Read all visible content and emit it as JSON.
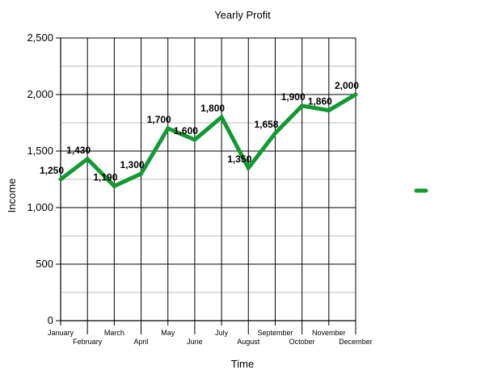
{
  "chart_data": {
    "type": "line",
    "title": "Yearly Profit",
    "xlabel": "Time",
    "ylabel": "Income",
    "categories": [
      "January",
      "February",
      "March",
      "April",
      "May",
      "June",
      "July",
      "August",
      "September",
      "October",
      "November",
      "December"
    ],
    "series": [
      {
        "values": [
          1250,
          1430,
          1190,
          1300,
          1700,
          1600,
          1800,
          1350,
          1658,
          1900,
          1860,
          2000
        ],
        "data_labels": [
          "1,250",
          "1,430",
          "1,190",
          "1,300",
          "1,700",
          "1,600",
          "1,800",
          "1,350",
          "1,658",
          "1,900",
          "1,860",
          "2,000"
        ],
        "color": "#119933"
      }
    ],
    "ylim": [
      0,
      2500
    ],
    "yticks": [
      0,
      500,
      1000,
      1500,
      2000,
      2500
    ],
    "ytick_labels": [
      "0",
      "500",
      "1,000",
      "1,500",
      "2,000",
      "2,500"
    ],
    "grid": true,
    "legend_position": "right",
    "colors": {
      "line": "#119933",
      "major_grid": "#000000",
      "minor_grid": "#bdbdbd",
      "axis": "#000000"
    }
  }
}
